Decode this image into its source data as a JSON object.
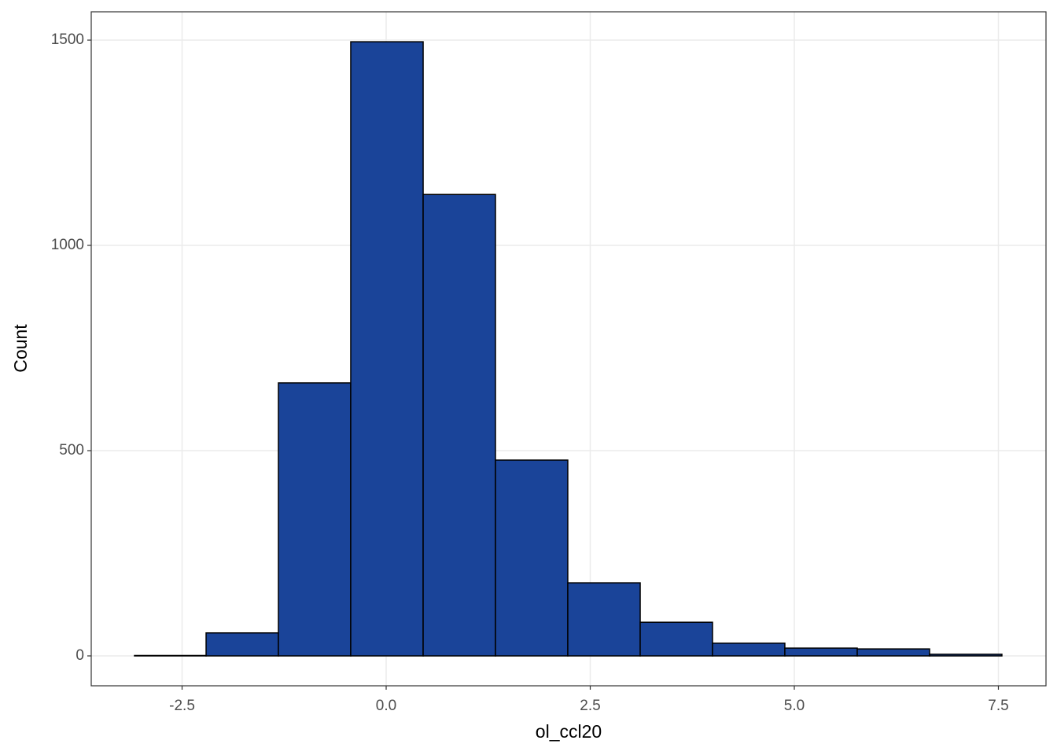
{
  "chart_data": {
    "type": "histogram",
    "x_label": "ol_ccl20",
    "y_label": "Count",
    "bins": [
      -3.083,
      -2.206,
      -1.32,
      -0.434,
      0.453,
      1.339,
      2.225,
      3.112,
      3.998,
      4.884,
      5.771,
      6.657,
      7.543
    ],
    "values": [
      1,
      56,
      665,
      1496,
      1124,
      477,
      178,
      82,
      31,
      19,
      17,
      4
    ],
    "color": "#1a4499",
    "edgecolor": "#000000",
    "xlim": [
      -3.613,
      8.083
    ],
    "ylim": [
      -72.8,
      1569
    ],
    "xticks": [
      -2.5,
      {
        "value": 0,
        "label": "0.0"
      },
      2.5,
      {
        "value": 5,
        "label": "5.0"
      },
      7.5
    ],
    "yticks": [
      0,
      500,
      1000,
      1500
    ],
    "grid": true
  }
}
